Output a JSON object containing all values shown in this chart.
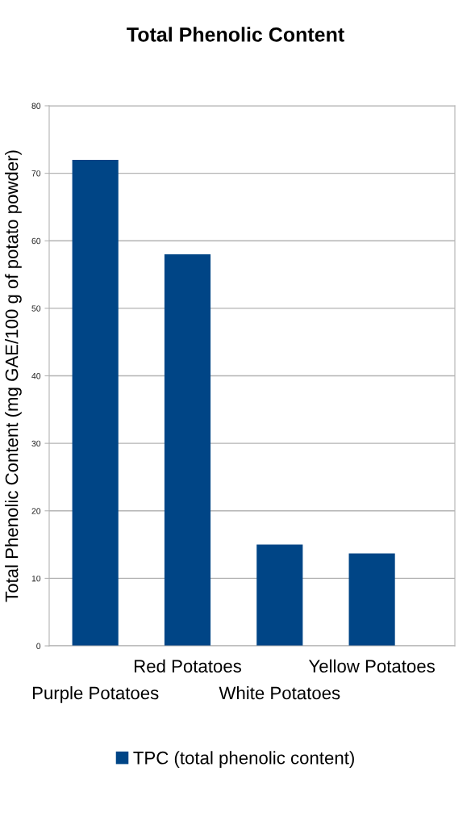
{
  "chart_data": {
    "type": "bar",
    "title": "Total Phenolic Content",
    "ylabel": "Total Phenolic Content (mg GAE/100 g of potato powder)",
    "categories": [
      "Purple Potatoes",
      "Red Potatoes",
      "White Potatoes",
      "Yellow Potatoes"
    ],
    "series": [
      {
        "name": "TPC (total phenolic content)",
        "color": "#004586",
        "values": [
          72,
          58,
          15,
          13.7
        ]
      }
    ],
    "ylim": [
      0,
      80
    ],
    "yticks": [
      0,
      10,
      20,
      30,
      40,
      50,
      60,
      70,
      80
    ],
    "grid": "y",
    "legend": "bottom"
  }
}
